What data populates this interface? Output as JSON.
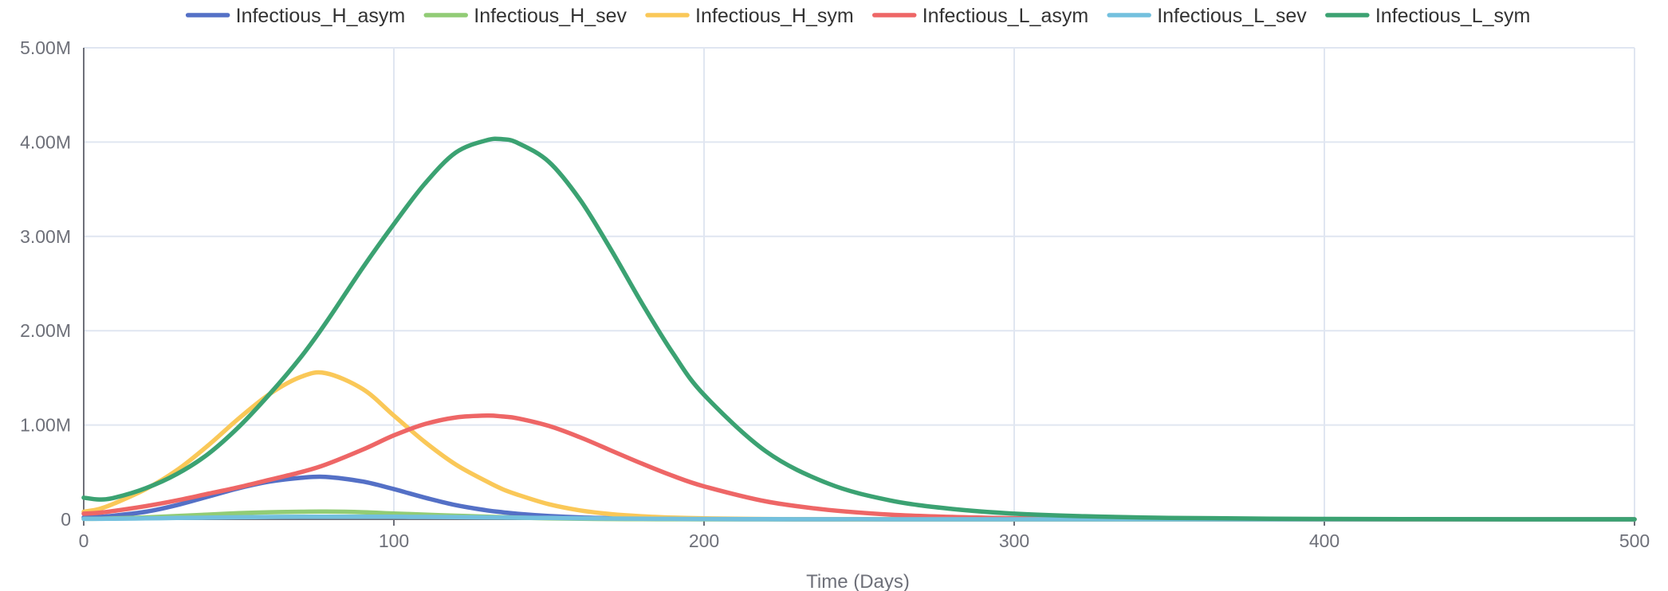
{
  "chart_data": {
    "type": "line",
    "title": "",
    "xlabel": "Time (Days)",
    "ylabel": "",
    "xlim": [
      0,
      500
    ],
    "ylim": [
      0,
      5000000
    ],
    "x_ticks": [
      0,
      100,
      200,
      300,
      400,
      500
    ],
    "x_tick_labels": [
      "0",
      "100",
      "200",
      "300",
      "400",
      "500"
    ],
    "y_ticks": [
      0,
      1000000,
      2000000,
      3000000,
      4000000,
      5000000
    ],
    "y_tick_labels": [
      "0",
      "1.00M",
      "2.00M",
      "3.00M",
      "4.00M",
      "5.00M"
    ],
    "grid": true,
    "legend_position": "top",
    "x": [
      0,
      5,
      10,
      20,
      30,
      40,
      50,
      60,
      70,
      78,
      90,
      100,
      110,
      120,
      130,
      135,
      140,
      150,
      160,
      170,
      180,
      190,
      200,
      220,
      240,
      260,
      280,
      300,
      320,
      350,
      400,
      450,
      500
    ],
    "series": [
      {
        "name": "Infectious_H_asym",
        "color": "#5470c6",
        "values": [
          20000,
          25000,
          40000,
          80000,
          150000,
          240000,
          330000,
          400000,
          440000,
          450000,
          400000,
          320000,
          230000,
          150000,
          95000,
          75000,
          58000,
          35000,
          20000,
          12000,
          7000,
          4000,
          2000,
          500,
          100,
          0,
          0,
          0,
          0,
          0,
          0,
          0,
          0
        ]
      },
      {
        "name": "Infectious_H_sev",
        "color": "#91cc75",
        "values": [
          5000,
          6000,
          10000,
          20000,
          35000,
          50000,
          65000,
          75000,
          80000,
          82000,
          75000,
          62000,
          50000,
          38000,
          28000,
          23000,
          18000,
          11000,
          6000,
          3000,
          1500,
          700,
          300,
          100,
          0,
          0,
          0,
          0,
          0,
          0,
          0,
          0,
          0
        ]
      },
      {
        "name": "Infectious_H_sym",
        "color": "#fac858",
        "values": [
          80000,
          110000,
          170000,
          320000,
          520000,
          780000,
          1070000,
          1330000,
          1510000,
          1550000,
          1380000,
          1100000,
          820000,
          580000,
          400000,
          320000,
          260000,
          160000,
          95000,
          55000,
          32000,
          18000,
          10000,
          3000,
          800,
          200,
          0,
          0,
          0,
          0,
          0,
          0,
          0
        ]
      },
      {
        "name": "Infectious_L_asym",
        "color": "#ee6666",
        "values": [
          60000,
          70000,
          90000,
          140000,
          200000,
          270000,
          340000,
          420000,
          500000,
          580000,
          740000,
          890000,
          1010000,
          1080000,
          1100000,
          1090000,
          1070000,
          990000,
          870000,
          730000,
          590000,
          460000,
          350000,
          190000,
          100000,
          50000,
          25000,
          12000,
          6000,
          2000,
          300,
          50,
          0
        ]
      },
      {
        "name": "Infectious_L_sev",
        "color": "#73c0de",
        "values": [
          5000,
          5000,
          7000,
          10000,
          14000,
          18000,
          22000,
          25000,
          27000,
          28000,
          28000,
          27000,
          25000,
          23000,
          20000,
          19000,
          17000,
          14000,
          11000,
          8500,
          6500,
          4800,
          3500,
          1800,
          900,
          400,
          200,
          100,
          50,
          0,
          0,
          0,
          0
        ]
      },
      {
        "name": "Infectious_L_sym",
        "color": "#3ba272",
        "values": [
          230000,
          210000,
          230000,
          330000,
          480000,
          690000,
          980000,
          1330000,
          1720000,
          2080000,
          2670000,
          3130000,
          3560000,
          3890000,
          4020000,
          4030000,
          3990000,
          3790000,
          3390000,
          2860000,
          2290000,
          1760000,
          1320000,
          720000,
          380000,
          200000,
          110000,
          60000,
          35000,
          15000,
          4000,
          1000,
          0
        ]
      }
    ]
  }
}
